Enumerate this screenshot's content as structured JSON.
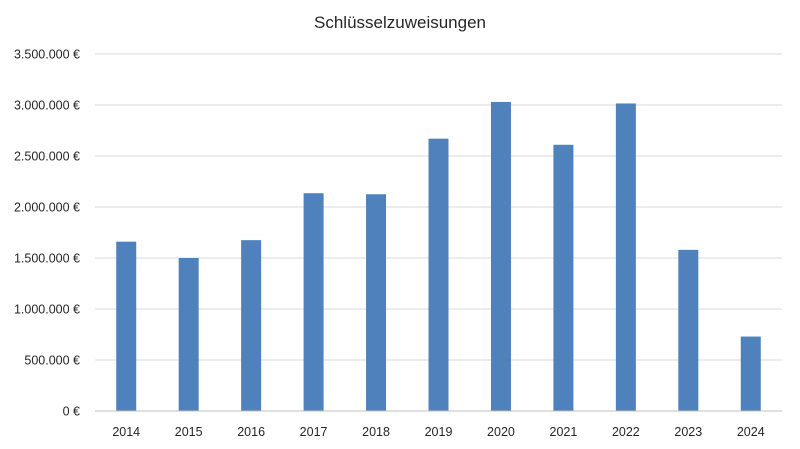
{
  "chart_data": {
    "type": "bar",
    "title": "Schlüsselzuweisungen",
    "xlabel": "",
    "ylabel": "",
    "categories": [
      "2014",
      "2015",
      "2016",
      "2017",
      "2018",
      "2019",
      "2020",
      "2021",
      "2022",
      "2023",
      "2024"
    ],
    "values": [
      1660000,
      1500000,
      1675000,
      2135000,
      2125000,
      2670000,
      3030000,
      2610000,
      3015000,
      1580000,
      730000
    ],
    "ylim": [
      0,
      3500000
    ],
    "y_ticks": [
      0,
      500000,
      1000000,
      1500000,
      2000000,
      2500000,
      3000000,
      3500000
    ],
    "y_tick_labels": [
      "0 €",
      "500.000 €",
      "1.000.000 €",
      "1.500.000 €",
      "2.000.000 €",
      "2.500.000 €",
      "3.000.000 €",
      "3.500.000 €"
    ],
    "grid": true,
    "legend": "none",
    "bar_color": "#4f81bd"
  }
}
